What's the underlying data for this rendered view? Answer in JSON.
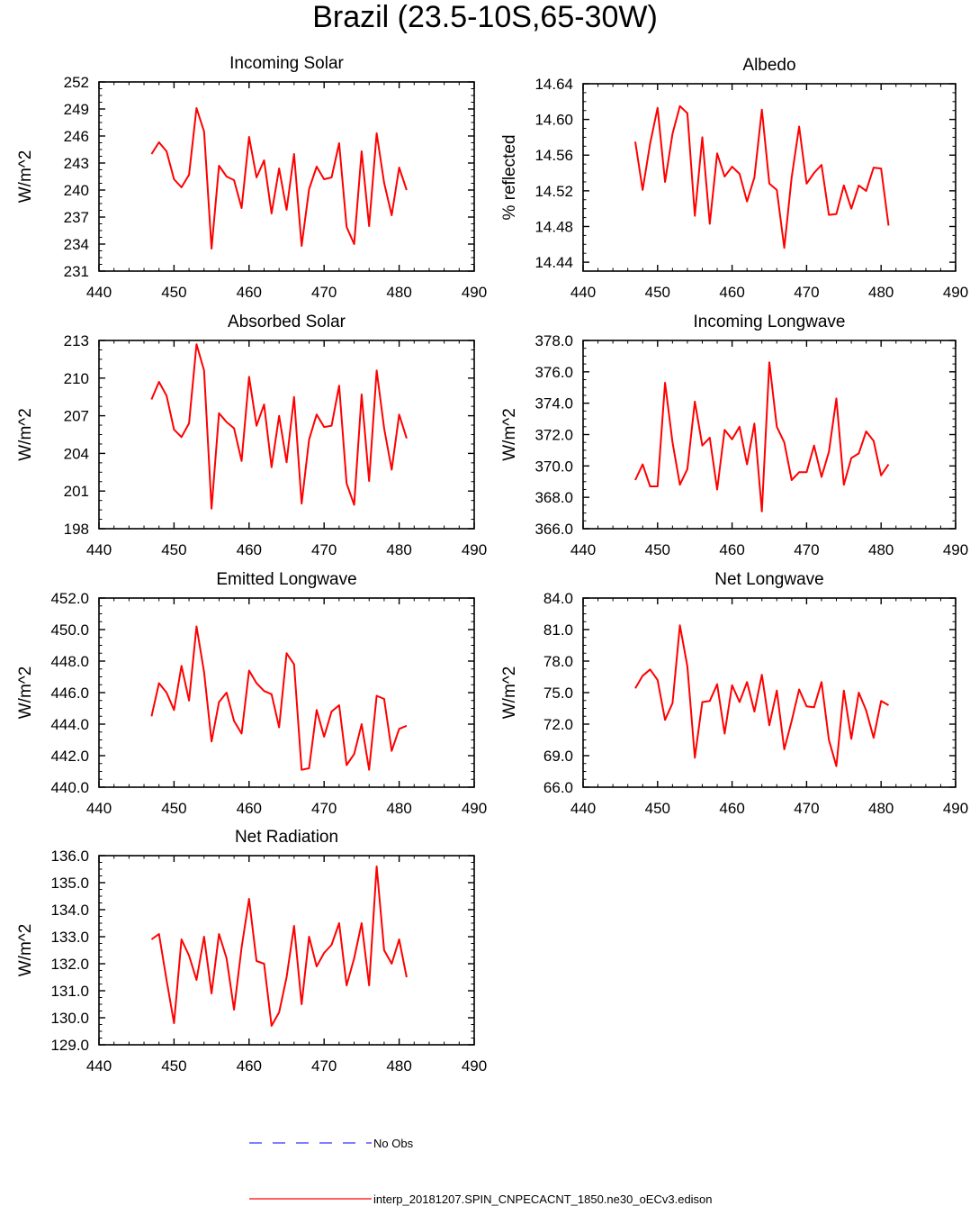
{
  "title": "Brazil (23.5-10S,65-30W)",
  "colors": {
    "model": "#ff0000",
    "obs": "#3333ff",
    "axis": "#000000"
  },
  "legend": {
    "obs_label": "No Obs",
    "model_label": "interp_20181207.SPIN_CNPECACNT_1850.ne30_oECv3.edison"
  },
  "chart_data": [
    {
      "type": "line",
      "title": "Incoming Solar",
      "ylabel": "W/m^2",
      "xlim": [
        440,
        490
      ],
      "xticks": [
        "440",
        "450",
        "460",
        "470",
        "480",
        "490"
      ],
      "ylim": [
        231,
        252
      ],
      "yticks": [
        "231",
        "234",
        "237",
        "240",
        "243",
        "246",
        "249",
        "252"
      ],
      "x": [
        447,
        448,
        449,
        450,
        451,
        452,
        453,
        454,
        455,
        456,
        457,
        458,
        459,
        460,
        461,
        462,
        463,
        464,
        465,
        466,
        467,
        468,
        469,
        470,
        471,
        472,
        473,
        474,
        475,
        476,
        477,
        478,
        479,
        480,
        481
      ],
      "values": [
        244.0,
        245.3,
        244.3,
        241.2,
        240.3,
        241.7,
        249.1,
        246.5,
        233.5,
        242.7,
        241.5,
        241.1,
        238.0,
        245.9,
        241.4,
        243.3,
        237.4,
        242.4,
        237.8,
        244.0,
        233.8,
        240.1,
        242.6,
        241.2,
        241.4,
        245.2,
        235.9,
        234.0,
        244.3,
        236.0,
        246.3,
        240.8,
        237.2,
        242.5,
        240.0
      ]
    },
    {
      "type": "line",
      "title": "Albedo",
      "ylabel": "% reflected",
      "xlim": [
        440,
        490
      ],
      "xticks": [
        "440",
        "450",
        "460",
        "470",
        "480",
        "490"
      ],
      "ylim": [
        14.43,
        14.64
      ],
      "yticks": [
        "14.44",
        "14.48",
        "14.52",
        "14.56",
        "14.60",
        "14.64"
      ],
      "x": [
        447,
        448,
        449,
        450,
        451,
        452,
        453,
        454,
        455,
        456,
        457,
        458,
        459,
        460,
        461,
        462,
        463,
        464,
        465,
        466,
        467,
        468,
        469,
        470,
        471,
        472,
        473,
        474,
        475,
        476,
        477,
        478,
        479,
        480,
        481
      ],
      "values": [
        14.575,
        14.521,
        14.573,
        14.613,
        14.53,
        14.584,
        14.615,
        14.607,
        14.492,
        14.58,
        14.483,
        14.562,
        14.536,
        14.547,
        14.539,
        14.508,
        14.535,
        14.611,
        14.528,
        14.521,
        14.456,
        14.535,
        14.592,
        14.528,
        14.54,
        14.549,
        14.493,
        14.494,
        14.526,
        14.5,
        14.526,
        14.52,
        14.546,
        14.545,
        14.481
      ]
    },
    {
      "type": "line",
      "title": "Absorbed Solar",
      "ylabel": "W/m^2",
      "xlim": [
        440,
        490
      ],
      "xticks": [
        "440",
        "450",
        "460",
        "470",
        "480",
        "490"
      ],
      "ylim": [
        198,
        213
      ],
      "yticks": [
        "198",
        "201",
        "204",
        "207",
        "210",
        "213"
      ],
      "x": [
        447,
        448,
        449,
        450,
        451,
        452,
        453,
        454,
        455,
        456,
        457,
        458,
        459,
        460,
        461,
        462,
        463,
        464,
        465,
        466,
        467,
        468,
        469,
        470,
        471,
        472,
        473,
        474,
        475,
        476,
        477,
        478,
        479,
        480,
        481
      ],
      "values": [
        208.3,
        209.7,
        208.6,
        205.9,
        205.3,
        206.4,
        212.7,
        210.6,
        199.6,
        207.2,
        206.5,
        206.0,
        203.4,
        210.1,
        206.2,
        207.9,
        202.9,
        207.0,
        203.3,
        208.5,
        200.0,
        205.1,
        207.1,
        206.1,
        206.2,
        209.4,
        201.6,
        199.9,
        208.7,
        201.8,
        210.6,
        206.0,
        202.7,
        207.1,
        205.2
      ]
    },
    {
      "type": "line",
      "title": "Incoming Longwave",
      "ylabel": "W/m^2",
      "xlim": [
        440,
        490
      ],
      "xticks": [
        "440",
        "450",
        "460",
        "470",
        "480",
        "490"
      ],
      "ylim": [
        366.0,
        378.0
      ],
      "yticks": [
        "366.0",
        "368.0",
        "370.0",
        "372.0",
        "374.0",
        "376.0",
        "378.0"
      ],
      "x": [
        447,
        448,
        449,
        450,
        451,
        452,
        453,
        454,
        455,
        456,
        457,
        458,
        459,
        460,
        461,
        462,
        463,
        464,
        465,
        466,
        467,
        468,
        469,
        470,
        471,
        472,
        473,
        474,
        475,
        476,
        477,
        478,
        479,
        480,
        481
      ],
      "values": [
        369.1,
        370.1,
        368.7,
        368.7,
        375.3,
        371.5,
        368.8,
        369.8,
        374.1,
        371.3,
        371.8,
        368.5,
        372.3,
        371.7,
        372.5,
        370.1,
        372.7,
        367.1,
        376.6,
        372.5,
        371.5,
        369.1,
        369.6,
        369.6,
        371.3,
        369.3,
        370.9,
        374.3,
        368.8,
        370.5,
        370.8,
        372.2,
        371.6,
        369.4,
        370.1
      ]
    },
    {
      "type": "line",
      "title": "Emitted Longwave",
      "ylabel": "W/m^2",
      "xlim": [
        440,
        490
      ],
      "xticks": [
        "440",
        "450",
        "460",
        "470",
        "480",
        "490"
      ],
      "ylim": [
        440.0,
        452.0
      ],
      "yticks": [
        "440.0",
        "442.0",
        "444.0",
        "446.0",
        "448.0",
        "450.0",
        "452.0"
      ],
      "x": [
        447,
        448,
        449,
        450,
        451,
        452,
        453,
        454,
        455,
        456,
        457,
        458,
        459,
        460,
        461,
        462,
        463,
        464,
        465,
        466,
        467,
        468,
        469,
        470,
        471,
        472,
        473,
        474,
        475,
        476,
        477,
        478,
        479,
        480,
        481
      ],
      "values": [
        444.5,
        446.6,
        446.0,
        444.9,
        447.7,
        445.5,
        450.2,
        447.3,
        442.9,
        445.4,
        446.0,
        444.2,
        443.4,
        447.4,
        446.6,
        446.1,
        445.9,
        443.8,
        448.5,
        447.8,
        441.1,
        441.2,
        444.9,
        443.2,
        444.8,
        445.2,
        441.4,
        442.1,
        444.0,
        441.1,
        445.8,
        445.6,
        442.3,
        443.7,
        443.9
      ]
    },
    {
      "type": "line",
      "title": "Net Longwave",
      "ylabel": "W/m^2",
      "xlim": [
        440,
        490
      ],
      "xticks": [
        "440",
        "450",
        "460",
        "470",
        "480",
        "490"
      ],
      "ylim": [
        66.0,
        84.0
      ],
      "yticks": [
        "66.0",
        "69.0",
        "72.0",
        "75.0",
        "78.0",
        "81.0",
        "84.0"
      ],
      "x": [
        447,
        448,
        449,
        450,
        451,
        452,
        453,
        454,
        455,
        456,
        457,
        458,
        459,
        460,
        461,
        462,
        463,
        464,
        465,
        466,
        467,
        468,
        469,
        470,
        471,
        472,
        473,
        474,
        475,
        476,
        477,
        478,
        479,
        480,
        481
      ],
      "values": [
        75.4,
        76.6,
        77.2,
        76.2,
        72.4,
        74.0,
        81.4,
        77.5,
        68.8,
        74.1,
        74.2,
        75.8,
        71.1,
        75.7,
        74.1,
        76.0,
        73.2,
        76.7,
        71.9,
        75.2,
        69.6,
        72.3,
        75.3,
        73.7,
        73.6,
        76.0,
        70.5,
        68.0,
        75.2,
        70.6,
        75.0,
        73.3,
        70.7,
        74.2,
        73.8
      ]
    },
    {
      "type": "line",
      "title": "Net Radiation",
      "ylabel": "W/m^2",
      "xlim": [
        440,
        490
      ],
      "xticks": [
        "440",
        "450",
        "460",
        "470",
        "480",
        "490"
      ],
      "ylim": [
        129.0,
        136.0
      ],
      "yticks": [
        "129.0",
        "130.0",
        "131.0",
        "132.0",
        "133.0",
        "134.0",
        "135.0",
        "136.0"
      ],
      "x": [
        447,
        448,
        449,
        450,
        451,
        452,
        453,
        454,
        455,
        456,
        457,
        458,
        459,
        460,
        461,
        462,
        463,
        464,
        465,
        466,
        467,
        468,
        469,
        470,
        471,
        472,
        473,
        474,
        475,
        476,
        477,
        478,
        479,
        480,
        481
      ],
      "values": [
        132.9,
        133.1,
        131.4,
        129.8,
        132.9,
        132.3,
        131.4,
        133.0,
        130.9,
        133.1,
        132.2,
        130.3,
        132.6,
        134.4,
        132.1,
        132.0,
        129.7,
        130.2,
        131.5,
        133.4,
        130.5,
        133.0,
        131.9,
        132.4,
        132.7,
        133.5,
        131.2,
        132.2,
        133.5,
        131.2,
        135.6,
        132.5,
        132.0,
        132.9,
        131.5
      ]
    }
  ]
}
